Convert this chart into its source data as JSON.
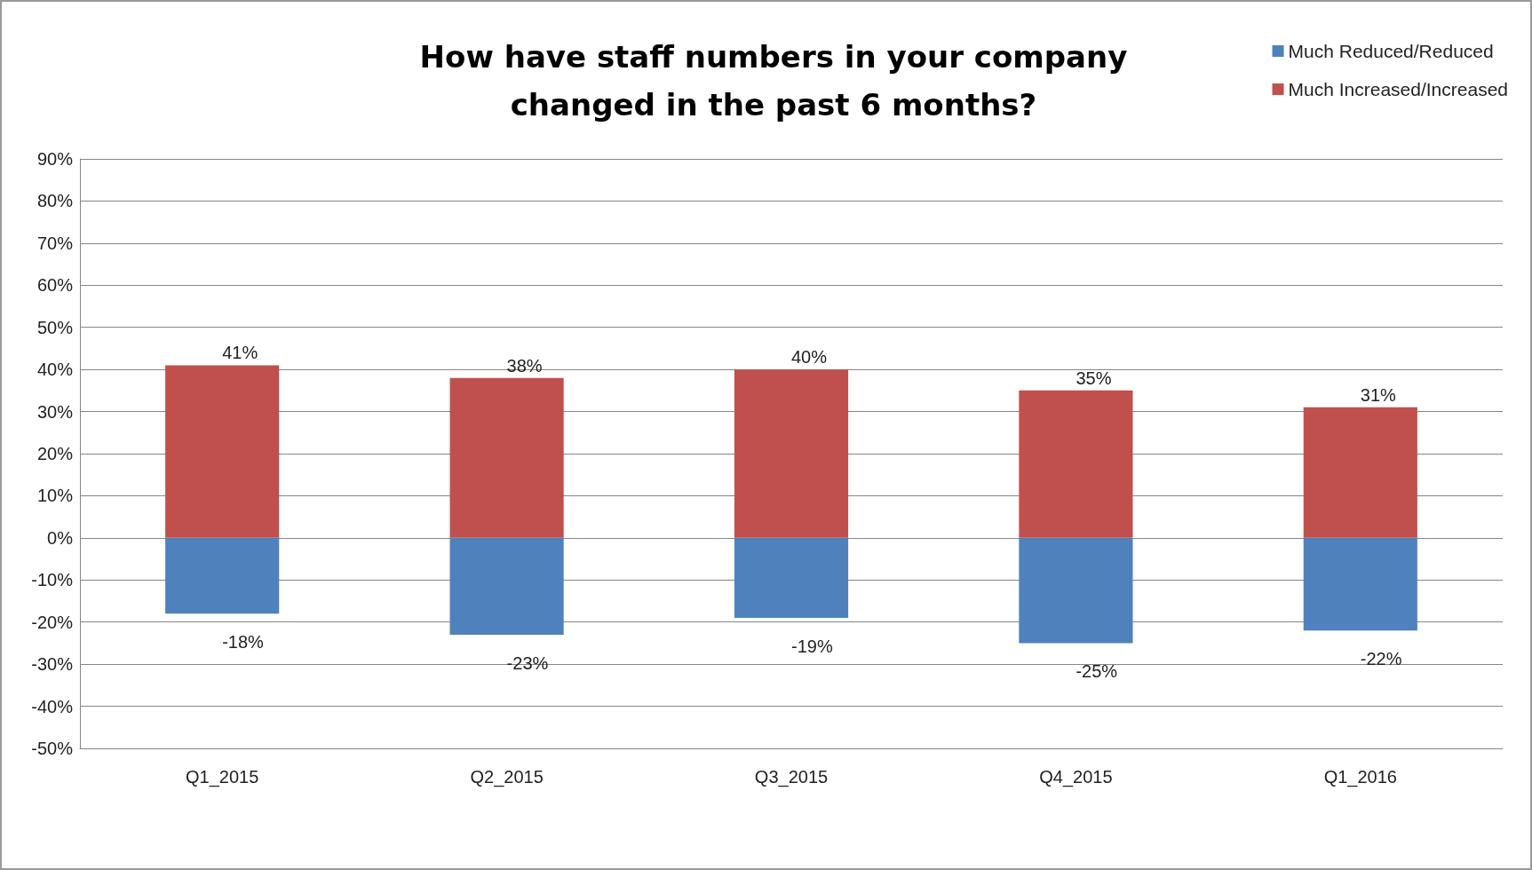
{
  "chart_data": {
    "type": "bar",
    "title": "How have staff numbers in your company\nchanged in the past 6 months?",
    "categories": [
      "Q1_2015",
      "Q2_2015",
      "Q3_2015",
      "Q4_2015",
      "Q1_2016"
    ],
    "stacked": true,
    "legend": "top right",
    "grid": "y",
    "ylim": [
      -50,
      90
    ],
    "yticks": [
      {
        "value": -50,
        "label": "-50%"
      },
      {
        "value": -40,
        "label": "-40%"
      },
      {
        "value": -30,
        "label": "-30%"
      },
      {
        "value": -20,
        "label": "-20%"
      },
      {
        "value": -10,
        "label": "-10%"
      },
      {
        "value": 0,
        "label": "0%"
      },
      {
        "value": 10,
        "label": "10%"
      },
      {
        "value": 20,
        "label": "20%"
      },
      {
        "value": 30,
        "label": "30%"
      },
      {
        "value": 40,
        "label": "40%"
      },
      {
        "value": 50,
        "label": "50%"
      },
      {
        "value": 60,
        "label": "60%"
      },
      {
        "value": 70,
        "label": "70%"
      },
      {
        "value": 80,
        "label": "80%"
      },
      {
        "value": 90,
        "label": "90%"
      }
    ],
    "series": [
      {
        "name": "Much Reduced/Reduced",
        "color": "#4f81bd",
        "values": [
          -18,
          -23,
          -19,
          -25,
          -22
        ],
        "value_labels": [
          "-18%",
          "-23%",
          "-19%",
          "-25%",
          "-22%"
        ]
      },
      {
        "name": "Much Increased/Increased",
        "color": "#c0504d",
        "values": [
          41,
          38,
          40,
          35,
          31
        ],
        "value_labels": [
          "41%",
          "38%",
          "40%",
          "35%",
          "31%"
        ]
      }
    ]
  }
}
